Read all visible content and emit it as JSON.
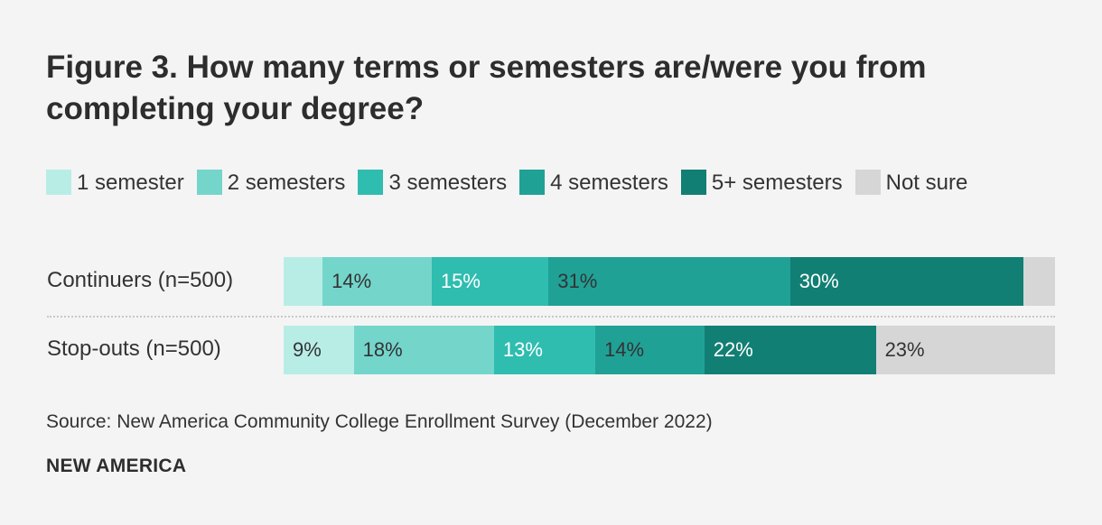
{
  "header": {
    "title": "Figure 3. How many terms or semesters are/were you from completing your degree?"
  },
  "footer": {
    "source": "Source: New America Community College Enrollment Survey (December 2022)",
    "brand": "NEW AMERICA"
  },
  "chart_data": {
    "type": "bar",
    "orientation": "horizontal",
    "stacked": true,
    "normalized_to_100": true,
    "title": "Figure 3. How many terms or semesters are/were you from completing your degree?",
    "legend_position": "top",
    "grid": false,
    "categories": [
      "Continuers (n=500)",
      "Stop-outs (n=500)"
    ],
    "series": [
      {
        "name": "1 semester",
        "color": "#b8ede6",
        "values": [
          5,
          9
        ],
        "labels": [
          "",
          "9%"
        ]
      },
      {
        "name": "2 semesters",
        "color": "#74d5cb",
        "values": [
          14,
          18
        ],
        "labels": [
          "14%",
          "18%"
        ]
      },
      {
        "name": "3 semesters",
        "color": "#2fbdb0",
        "values": [
          15,
          13
        ],
        "labels": [
          "15%",
          "13%"
        ]
      },
      {
        "name": "4 semesters",
        "color": "#20a196",
        "values": [
          31,
          14
        ],
        "labels": [
          "31%",
          "14%"
        ]
      },
      {
        "name": "5+ semesters",
        "color": "#127f74",
        "values": [
          30,
          22
        ],
        "labels": [
          "30%",
          "22%"
        ]
      },
      {
        "name": "Not sure",
        "color": "#d6d6d6",
        "values": [
          4,
          23
        ],
        "labels": [
          "",
          "23%"
        ]
      }
    ]
  }
}
